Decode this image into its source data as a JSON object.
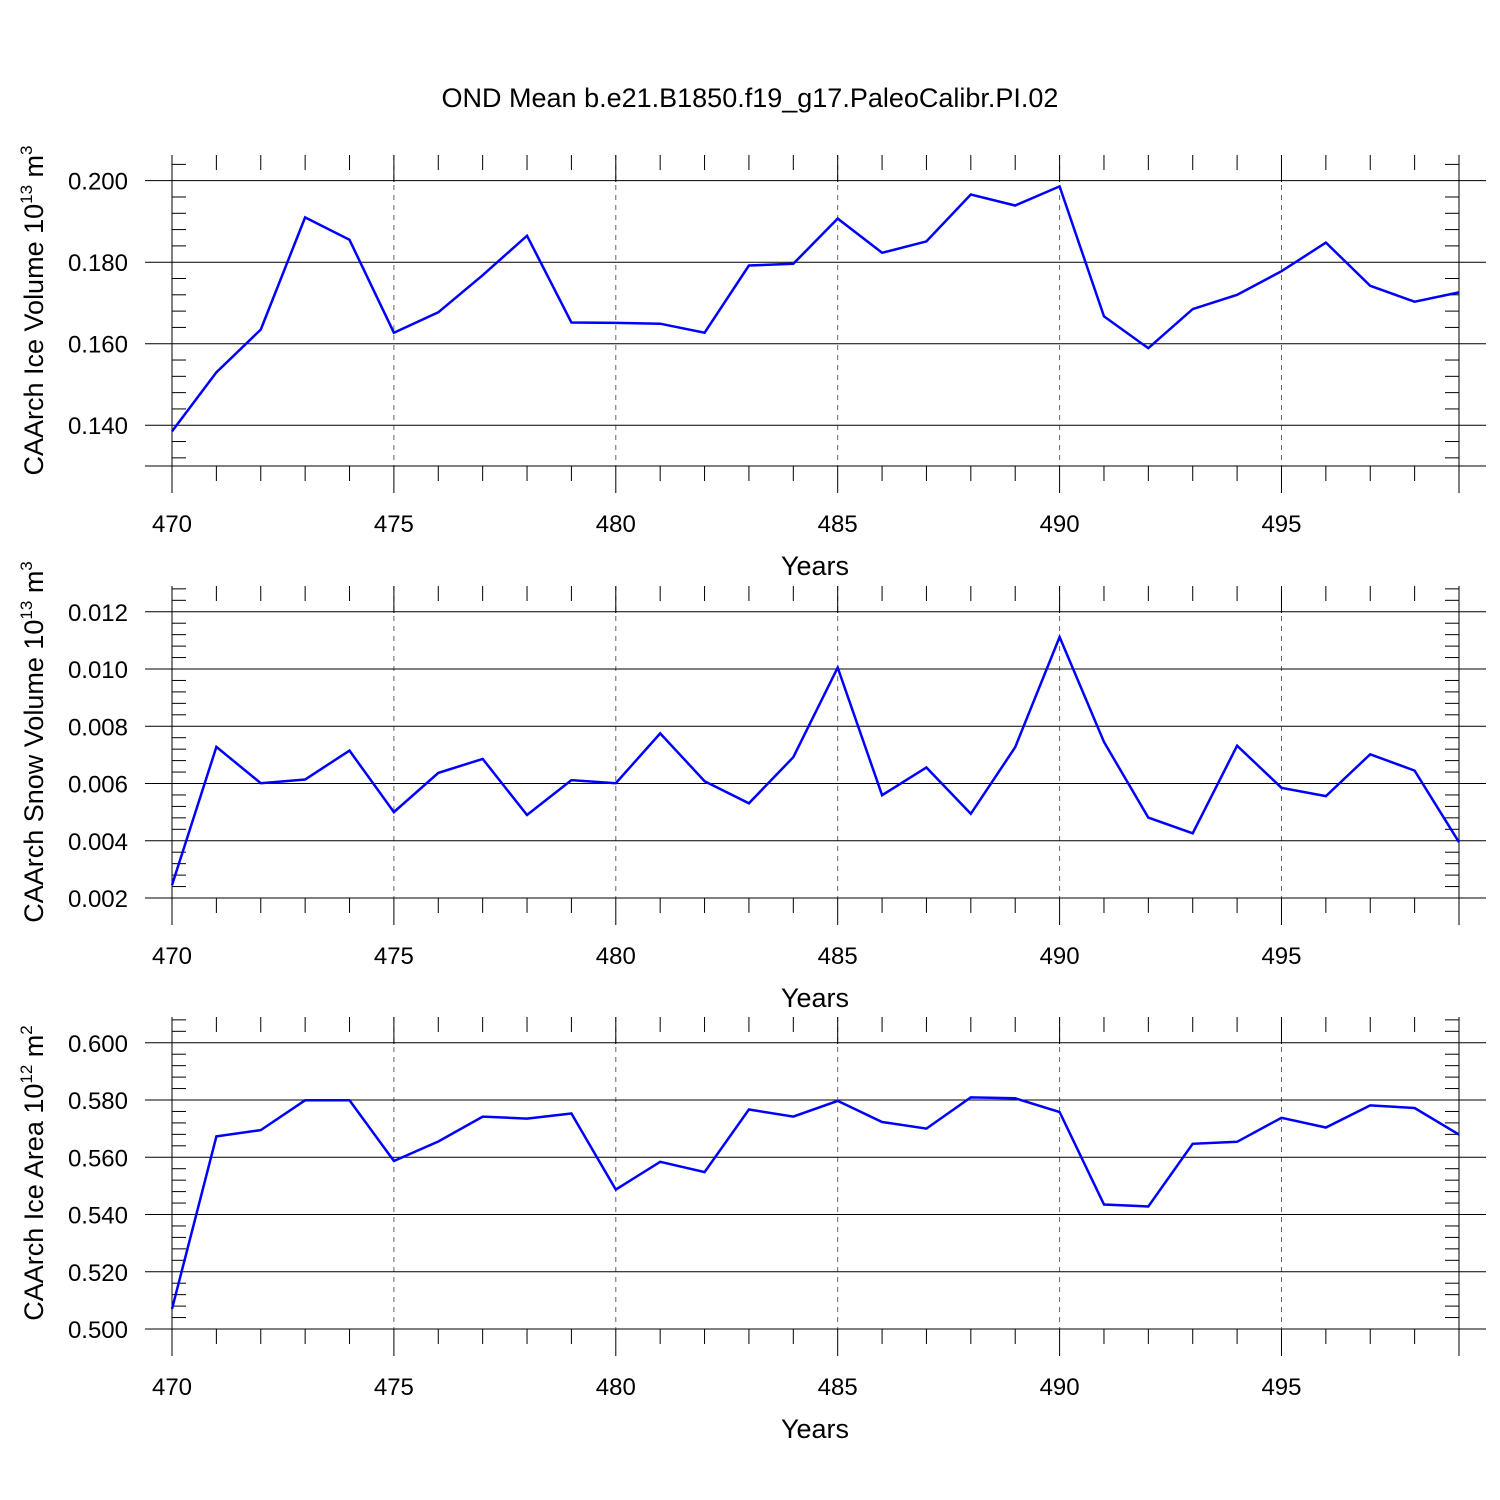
{
  "title": "OND Mean b.e21.B1850.f19_g17.PaleoCalibr.PI.02",
  "line_color": "#0000ff",
  "chart_data": [
    {
      "type": "line",
      "ylabel": "CAArch Ice Volume 10",
      "ylabel_sup": "13",
      "ylabel_unit": "m",
      "ylabel_unit_sup": "3",
      "xlabel": "Years",
      "xlim": [
        470,
        499
      ],
      "ylim": [
        0.13,
        0.2063
      ],
      "xticks": [
        "470",
        "475",
        "480",
        "485",
        "490",
        "495"
      ],
      "yticks": [
        "0.140",
        "0.160",
        "0.180",
        "0.200"
      ],
      "x": [
        470,
        471,
        472,
        473,
        474,
        475,
        476,
        477,
        478,
        479,
        480,
        481,
        482,
        483,
        484,
        485,
        486,
        487,
        488,
        489,
        490,
        491,
        492,
        493,
        494,
        495,
        496,
        497,
        498,
        499
      ],
      "values": [
        0.1385,
        0.153,
        0.1635,
        0.191,
        0.1855,
        0.1627,
        0.1677,
        0.1768,
        0.1865,
        0.1652,
        0.1651,
        0.1649,
        0.1627,
        0.1792,
        0.1796,
        0.1907,
        0.1823,
        0.1851,
        0.1966,
        0.1939,
        0.1986,
        0.1667,
        0.1589,
        0.1685,
        0.172,
        0.1778,
        0.1848,
        0.1742,
        0.1703,
        0.1726
      ]
    },
    {
      "type": "line",
      "ylabel": "CAArch Snow Volume 10",
      "ylabel_sup": "13",
      "ylabel_unit": "m",
      "ylabel_unit_sup": "3",
      "xlabel": "Years",
      "xlim": [
        470,
        499
      ],
      "ylim": [
        0.002,
        0.0129
      ],
      "xticks": [
        "470",
        "475",
        "480",
        "485",
        "490",
        "495"
      ],
      "yticks": [
        "0.002",
        "0.004",
        "0.006",
        "0.008",
        "0.010",
        "0.012"
      ],
      "x": [
        470,
        471,
        472,
        473,
        474,
        475,
        476,
        477,
        478,
        479,
        480,
        481,
        482,
        483,
        484,
        485,
        486,
        487,
        488,
        489,
        490,
        491,
        492,
        493,
        494,
        495,
        496,
        497,
        498,
        499
      ],
      "values": [
        0.00245,
        0.00728,
        0.00601,
        0.00614,
        0.00715,
        0.005,
        0.00637,
        0.00686,
        0.0049,
        0.00612,
        0.00601,
        0.00775,
        0.00608,
        0.00531,
        0.00692,
        0.01005,
        0.00559,
        0.00656,
        0.00494,
        0.00727,
        0.01112,
        0.00745,
        0.00481,
        0.00426,
        0.00732,
        0.00585,
        0.00556,
        0.00702,
        0.00645,
        0.00395
      ]
    },
    {
      "type": "line",
      "ylabel": "CAArch Ice Area 10",
      "ylabel_sup": "12",
      "ylabel_unit": "m",
      "ylabel_unit_sup": "2",
      "xlabel": "Years",
      "xlim": [
        470,
        499
      ],
      "ylim": [
        0.5,
        0.609
      ],
      "xticks": [
        "470",
        "475",
        "480",
        "485",
        "490",
        "495"
      ],
      "yticks": [
        "0.500",
        "0.520",
        "0.540",
        "0.560",
        "0.580",
        "0.600"
      ],
      "x": [
        470,
        471,
        472,
        473,
        474,
        475,
        476,
        477,
        478,
        479,
        480,
        481,
        482,
        483,
        484,
        485,
        486,
        487,
        488,
        489,
        490,
        491,
        492,
        493,
        494,
        495,
        496,
        497,
        498,
        499
      ],
      "values": [
        0.507,
        0.5673,
        0.5695,
        0.5799,
        0.5799,
        0.5587,
        0.5655,
        0.5742,
        0.5735,
        0.5753,
        0.5487,
        0.5584,
        0.5548,
        0.5767,
        0.5742,
        0.5797,
        0.5723,
        0.57,
        0.5809,
        0.5806,
        0.5758,
        0.5435,
        0.5428,
        0.5647,
        0.5654,
        0.5738,
        0.5704,
        0.5781,
        0.5772,
        0.5679
      ]
    }
  ]
}
